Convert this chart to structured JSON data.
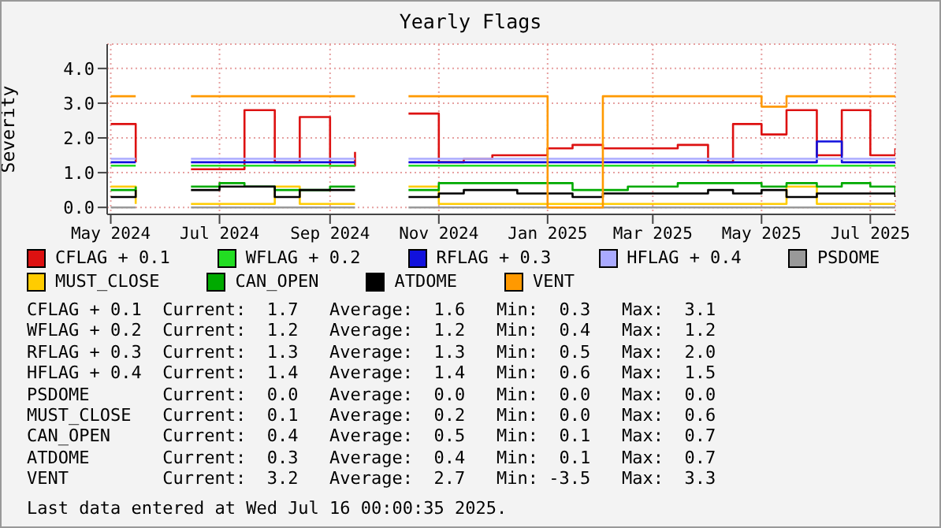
{
  "chart_data": {
    "type": "step",
    "title": "Yearly Flags",
    "ylabel": "Severity",
    "x": [
      "2024-05-01",
      "2024-05-15",
      "2024-06-01",
      "2024-06-15",
      "2024-07-01",
      "2024-07-15",
      "2024-08-01",
      "2024-08-15",
      "2024-09-01",
      "2024-09-15",
      "2024-10-01",
      "2024-10-15",
      "2024-11-01",
      "2024-11-15",
      "2024-12-01",
      "2024-12-15",
      "2025-01-01",
      "2025-01-15",
      "2025-02-01",
      "2025-02-15",
      "2025-03-01",
      "2025-03-15",
      "2025-04-01",
      "2025-04-15",
      "2025-05-01",
      "2025-05-15",
      "2025-06-01",
      "2025-06-15",
      "2025-07-01",
      "2025-07-15"
    ],
    "series": [
      {
        "name": "CFLAG + 0.1",
        "color": "#dd1111",
        "values": [
          2.4,
          1.3,
          null,
          1.1,
          1.1,
          2.8,
          1.3,
          2.6,
          1.2,
          1.6,
          null,
          2.7,
          1.3,
          1.4,
          1.5,
          1.5,
          1.7,
          1.8,
          1.7,
          1.7,
          1.7,
          1.8,
          1.3,
          2.4,
          2.1,
          2.8,
          1.5,
          2.8,
          1.5,
          1.7
        ]
      },
      {
        "name": "WFLAG + 0.2",
        "color": "#22dd22",
        "values": [
          1.2,
          1.2,
          null,
          1.2,
          1.2,
          1.2,
          1.2,
          1.2,
          1.2,
          1.2,
          null,
          1.2,
          1.2,
          1.2,
          1.2,
          1.2,
          1.2,
          1.2,
          1.2,
          1.2,
          1.2,
          1.2,
          1.2,
          1.2,
          1.2,
          1.2,
          1.2,
          1.2,
          1.2,
          1.2
        ]
      },
      {
        "name": "RFLAG + 0.3",
        "color": "#1111dd",
        "values": [
          1.3,
          1.3,
          null,
          1.3,
          1.3,
          1.3,
          1.3,
          1.3,
          1.3,
          1.3,
          null,
          1.3,
          1.3,
          1.3,
          1.3,
          1.3,
          1.3,
          1.3,
          1.3,
          1.3,
          1.3,
          1.3,
          1.3,
          1.3,
          1.3,
          1.3,
          1.9,
          1.3,
          1.3,
          1.3
        ]
      },
      {
        "name": "HFLAG + 0.4",
        "color": "#aaaaff",
        "values": [
          1.4,
          1.4,
          null,
          1.4,
          1.4,
          1.4,
          1.4,
          1.4,
          1.4,
          1.4,
          null,
          1.4,
          1.4,
          1.4,
          1.4,
          1.4,
          1.4,
          1.4,
          1.4,
          1.4,
          1.4,
          1.4,
          1.4,
          1.4,
          1.4,
          1.4,
          1.4,
          1.4,
          1.4,
          1.4
        ]
      },
      {
        "name": "PSDOME",
        "color": "#999999",
        "values": [
          0.0,
          0.0,
          null,
          0.0,
          0.0,
          0.0,
          0.0,
          0.0,
          0.0,
          0.0,
          null,
          0.0,
          0.0,
          0.0,
          0.0,
          0.0,
          0.0,
          0.0,
          0.0,
          0.0,
          0.0,
          0.0,
          0.0,
          0.0,
          0.0,
          0.0,
          0.0,
          0.0,
          0.0,
          0.0
        ]
      },
      {
        "name": "MUST_CLOSE",
        "color": "#ffcc00",
        "values": [
          0.6,
          0.1,
          null,
          0.1,
          0.1,
          0.1,
          0.6,
          0.1,
          0.1,
          0.1,
          null,
          0.6,
          0.1,
          0.1,
          0.1,
          0.1,
          0.1,
          0.1,
          0.1,
          0.1,
          0.1,
          0.1,
          0.1,
          0.1,
          0.1,
          0.6,
          0.1,
          0.1,
          0.1,
          0.1
        ]
      },
      {
        "name": "CAN_OPEN",
        "color": "#00aa00",
        "values": [
          0.5,
          0.6,
          null,
          0.6,
          0.7,
          0.6,
          0.5,
          0.5,
          0.6,
          0.6,
          null,
          0.5,
          0.7,
          0.7,
          0.7,
          0.7,
          0.7,
          0.5,
          0.5,
          0.6,
          0.6,
          0.7,
          0.7,
          0.7,
          0.6,
          0.7,
          0.6,
          0.7,
          0.6,
          0.4
        ]
      },
      {
        "name": "ATDOME",
        "color": "#000000",
        "values": [
          0.3,
          0.5,
          null,
          0.5,
          0.6,
          0.6,
          0.3,
          0.5,
          0.5,
          0.5,
          null,
          0.3,
          0.4,
          0.5,
          0.5,
          0.4,
          0.4,
          0.3,
          0.4,
          0.4,
          0.4,
          0.4,
          0.5,
          0.4,
          0.5,
          0.3,
          0.4,
          0.4,
          0.4,
          0.3
        ]
      },
      {
        "name": "VENT",
        "color": "#ff9900",
        "values": [
          3.2,
          3.2,
          null,
          3.2,
          3.2,
          3.2,
          3.2,
          3.2,
          3.2,
          3.2,
          null,
          3.2,
          3.2,
          3.2,
          3.2,
          3.2,
          0.0,
          0.0,
          3.2,
          3.2,
          3.2,
          3.2,
          3.2,
          3.2,
          2.9,
          3.2,
          3.2,
          3.2,
          3.2,
          3.2
        ]
      }
    ],
    "xlim": [
      "2024-04-29",
      "2025-07-15"
    ],
    "xticks": [
      {
        "value": "2024-05-01",
        "label": "May 2024"
      },
      {
        "value": "2024-07-01",
        "label": "Jul 2024"
      },
      {
        "value": "2024-09-01",
        "label": "Sep 2024"
      },
      {
        "value": "2024-11-01",
        "label": "Nov 2024"
      },
      {
        "value": "2025-01-01",
        "label": "Jan 2025"
      },
      {
        "value": "2025-03-01",
        "label": "Mar 2025"
      },
      {
        "value": "2025-05-01",
        "label": "May 2025"
      },
      {
        "value": "2025-07-01",
        "label": "Jul 2025"
      }
    ],
    "ylim": [
      -0.2,
      4.7
    ],
    "yticks": [
      {
        "value": 0,
        "label": "0.0"
      },
      {
        "value": 1,
        "label": "1.0"
      },
      {
        "value": 2,
        "label": "2.0"
      },
      {
        "value": 3,
        "label": "3.0"
      },
      {
        "value": 4,
        "label": "4.0"
      }
    ],
    "grid": true,
    "legend": "bottom",
    "marker": "none",
    "line_style": "solid",
    "annotations": [
      "CFLAG + 0.1  Current:  1.7   Average:  1.6   Min:  0.3   Max:  3.1",
      "WFLAG + 0.2  Current:  1.2   Average:  1.2   Min:  0.4   Max:  1.2",
      "RFLAG + 0.3  Current:  1.3   Average:  1.3   Min:  0.5   Max:  2.0",
      "HFLAG + 0.4  Current:  1.4   Average:  1.4   Min:  0.6   Max:  1.5",
      "PSDOME       Current:  0.0   Average:  0.0   Min:  0.0   Max:  0.0",
      "MUST_CLOSE   Current:  0.1   Average:  0.2   Min:  0.0   Max:  0.6",
      "CAN_OPEN     Current:  0.4   Average:  0.5   Min:  0.1   Max:  0.7",
      "ATDOME       Current:  0.3   Average:  0.4   Min:  0.1   Max:  0.7",
      "VENT         Current:  3.2   Average:  2.7   Min: -3.5   Max:  3.3",
      "Last data entered at Wed Jul 16 00:00:35 2025."
    ]
  }
}
